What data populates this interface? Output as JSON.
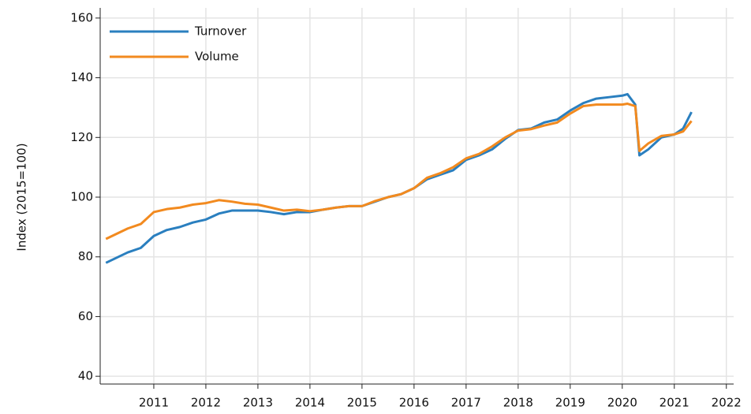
{
  "chart_data": {
    "type": "line",
    "y_label": "Index (2015=100)",
    "x": [
      2010.08,
      2010.5,
      2010.75,
      2011.0,
      2011.25,
      2011.5,
      2011.75,
      2012.0,
      2012.25,
      2012.5,
      2012.75,
      2013.0,
      2013.25,
      2013.5,
      2013.75,
      2014.0,
      2014.25,
      2014.5,
      2014.75,
      2015.0,
      2015.25,
      2015.5,
      2015.75,
      2016.0,
      2016.25,
      2016.5,
      2016.75,
      2017.0,
      2017.25,
      2017.5,
      2017.75,
      2018.0,
      2018.25,
      2018.5,
      2018.75,
      2019.0,
      2019.25,
      2019.5,
      2019.75,
      2020.0,
      2020.1,
      2020.25,
      2020.33,
      2020.5,
      2020.75,
      2021.0,
      2021.17,
      2021.33
    ],
    "series": [
      {
        "name": "Turnover",
        "color": "#2a7fbf",
        "values": [
          78,
          81.5,
          83,
          87,
          89,
          90,
          91.5,
          92.5,
          94.5,
          95.5,
          95.5,
          95.5,
          95,
          94.3,
          95,
          95,
          95.8,
          96.5,
          97,
          97,
          98.5,
          100,
          101,
          103,
          106,
          107.5,
          109,
          112.5,
          114,
          116,
          119.5,
          122.5,
          123,
          125,
          126,
          129,
          131.5,
          133,
          133.5,
          134,
          134.5,
          131,
          114,
          116,
          120,
          121,
          123,
          128.5
        ]
      },
      {
        "name": "Volume",
        "color": "#f28a1f",
        "values": [
          86,
          89.5,
          91,
          95,
          96,
          96.5,
          97.5,
          98,
          99,
          98.5,
          97.8,
          97.5,
          96.5,
          95.5,
          95.8,
          95.3,
          95.8,
          96.5,
          97,
          97,
          98.7,
          100,
          101,
          103,
          106.5,
          108,
          110,
          113,
          114.5,
          117,
          120,
          122.3,
          122.8,
          124,
          125,
          128,
          130.5,
          131,
          131,
          131,
          131.3,
          130.5,
          115.5,
          118,
          120.5,
          121,
          122,
          125.5
        ]
      }
    ],
    "xlim": [
      2009.97,
      2022.14
    ],
    "xticks": [
      2011,
      2012,
      2013,
      2014,
      2015,
      2016,
      2017,
      2018,
      2019,
      2020,
      2021,
      2022
    ],
    "ylim": [
      37.4,
      163.4
    ],
    "yticks": [
      40,
      60,
      80,
      100,
      120,
      140,
      160
    ],
    "grid": true,
    "legend": "upper-left"
  }
}
